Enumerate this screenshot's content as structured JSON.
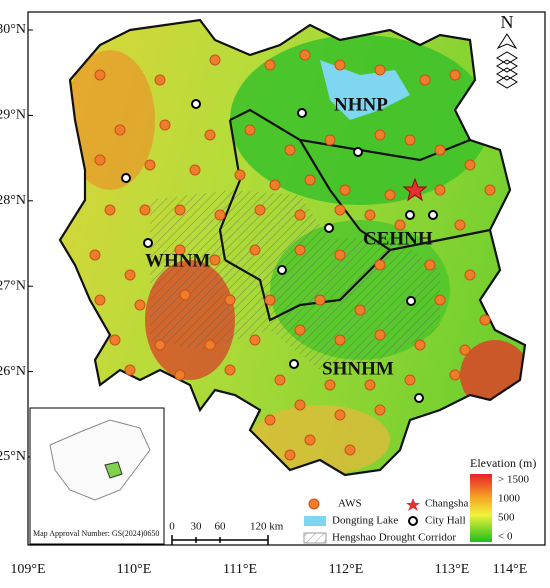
{
  "map": {
    "lat_labels": [
      "30°N",
      "29°N",
      "28°N",
      "27°N",
      "26°N",
      "25°N"
    ],
    "lon_labels": [
      "109°E",
      "110°E",
      "111°E",
      "112°E",
      "113°E",
      "114°E"
    ],
    "regions": [
      "NHNP",
      "WHNM",
      "CEHNH",
      "SHNHM"
    ],
    "north": "N",
    "legend": {
      "aws": "AWS",
      "changsha": "Changsha",
      "lake": "Dongting Lake",
      "city": "City Hall",
      "corridor": "Hengshao Drought Corridor"
    },
    "elevation": {
      "title": "Elevation (m)",
      "labels": [
        "> 1500",
        "1000",
        "500",
        "< 0"
      ]
    },
    "scale": {
      "labels": [
        "0",
        "30",
        "60",
        "120 km"
      ]
    },
    "inset": {
      "note": "Map Approval Number: GS(2024)0650"
    }
  }
}
